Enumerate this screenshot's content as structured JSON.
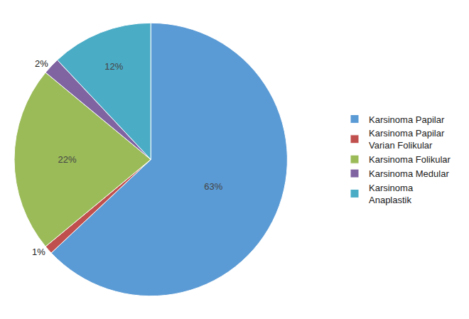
{
  "chart_data": {
    "type": "pie",
    "categories": [
      "Karsinoma Papilar",
      "Karsinoma Papilar\nVarian Folikular",
      "Karsinoma Folikular",
      "Karsinoma Medular",
      "Karsinoma\nAnaplastik"
    ],
    "values": [
      63,
      1,
      22,
      2,
      12
    ],
    "value_labels": [
      "63%",
      "1%",
      "22%",
      "2%",
      "12%"
    ],
    "colors": [
      "#5B9BD5",
      "#C0504D",
      "#9BBB59",
      "#8064A2",
      "#4BACC6"
    ],
    "data_labels": true,
    "legend": "right"
  }
}
